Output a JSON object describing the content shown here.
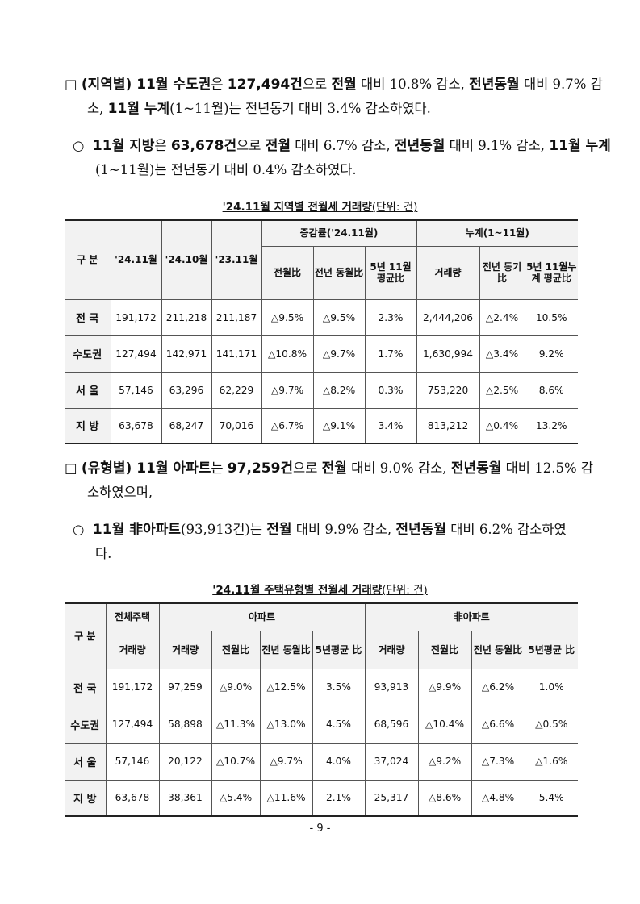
{
  "p1": {
    "mark": "□",
    "s1": "(지역별) 11월 수도권",
    "s2": "은 ",
    "s3": "127,494건",
    "s4": "으로 ",
    "s5": "전월",
    "s6": " 대비 10.8% 감소, ",
    "s7": "전년동월",
    "s8": " 대비 9.7% 감소, ",
    "s9": "11월 누계",
    "s10": "(1~11월)는 전년동기 대비 3.4% 감소하였다."
  },
  "p2": {
    "mark": "○",
    "s1": "11월 지방",
    "s2": "은 ",
    "s3": "63,678건",
    "s4": "으로 ",
    "s5": "전월",
    "s6": " 대비 6.7% 감소, ",
    "s7": "전년동월",
    "s8": " 대비 9.1% 감소, ",
    "s9": "11월 누계",
    "s10": "(1~11월)는 전년동기 대비 0.4% 감소하였다."
  },
  "table1": {
    "title": "'24.11월 지역별 전월세 거래량",
    "unit": "(단위: 건)",
    "h_gubun": "구 분",
    "h_2411": "'24.11월",
    "h_2410": "'24.10월",
    "h_2311": "'23.11월",
    "h_change": "증감률('24.11월)",
    "h_cum": "누계(1~11월)",
    "h_mom": "전월比",
    "h_yoy": "전년 동월比",
    "h_5y": "5년 11월 평균比",
    "h_vol": "거래량",
    "h_yoy2": "전년 동기比",
    "h_5ycum": "5년 11월누계 평균比",
    "rows": [
      {
        "label": "전 국",
        "c": [
          "191,172",
          "211,218",
          "211,187",
          "△9.5%",
          "△9.5%",
          "2.3%",
          "2,444,206",
          "△2.4%",
          "10.5%"
        ]
      },
      {
        "label": "수도권",
        "c": [
          "127,494",
          "142,971",
          "141,171",
          "△10.8%",
          "△9.7%",
          "1.7%",
          "1,630,994",
          "△3.4%",
          "9.2%"
        ]
      },
      {
        "label": "서 울",
        "c": [
          "57,146",
          "63,296",
          "62,229",
          "△9.7%",
          "△8.2%",
          "0.3%",
          "753,220",
          "△2.5%",
          "8.6%"
        ]
      },
      {
        "label": "지 방",
        "c": [
          "63,678",
          "68,247",
          "70,016",
          "△6.7%",
          "△9.1%",
          "3.4%",
          "813,212",
          "△0.4%",
          "13.2%"
        ]
      }
    ]
  },
  "p3": {
    "mark": "□",
    "s1": "(유형별) 11월 아파트",
    "s2": "는 ",
    "s3": "97,259건",
    "s4": "으로 ",
    "s5": "전월",
    "s6": " 대비 9.0% 감소, ",
    "s7": "전년동월",
    "s8": " 대비 12.5% 감소하였으며,"
  },
  "p4": {
    "mark": "○",
    "s1": "11월 非아파트",
    "s2": "(93,913건)는 ",
    "s3": "전월",
    "s4": " 대비 9.9% 감소, ",
    "s5": "전년동월",
    "s6": " 대비 6.2% 감소하였다."
  },
  "table2": {
    "title": "'24.11월 주택유형별 전월세 거래량",
    "unit": "(단위: 건)",
    "h_gubun": "구 분",
    "h_total": "전체주택",
    "h_apt": "아파트",
    "h_nonapt": "非아파트",
    "h_vol": "거래량",
    "h_mom": "전월比",
    "h_yoy": "전년 동월比",
    "h_5y": "5년평균 比",
    "rows": [
      {
        "label": "전 국",
        "c": [
          "191,172",
          "97,259",
          "△9.0%",
          "△12.5%",
          "3.5%",
          "93,913",
          "△9.9%",
          "△6.2%",
          "1.0%"
        ]
      },
      {
        "label": "수도권",
        "c": [
          "127,494",
          "58,898",
          "△11.3%",
          "△13.0%",
          "4.5%",
          "68,596",
          "△10.4%",
          "△6.6%",
          "△0.5%"
        ]
      },
      {
        "label": "서 울",
        "c": [
          "57,146",
          "20,122",
          "△10.7%",
          "△9.7%",
          "4.0%",
          "37,024",
          "△9.2%",
          "△7.3%",
          "△1.6%"
        ]
      },
      {
        "label": "지 방",
        "c": [
          "63,678",
          "38,361",
          "△5.4%",
          "△11.6%",
          "2.1%",
          "25,317",
          "△8.6%",
          "△4.8%",
          "5.4%"
        ]
      }
    ]
  },
  "page_number": "- 9 -"
}
